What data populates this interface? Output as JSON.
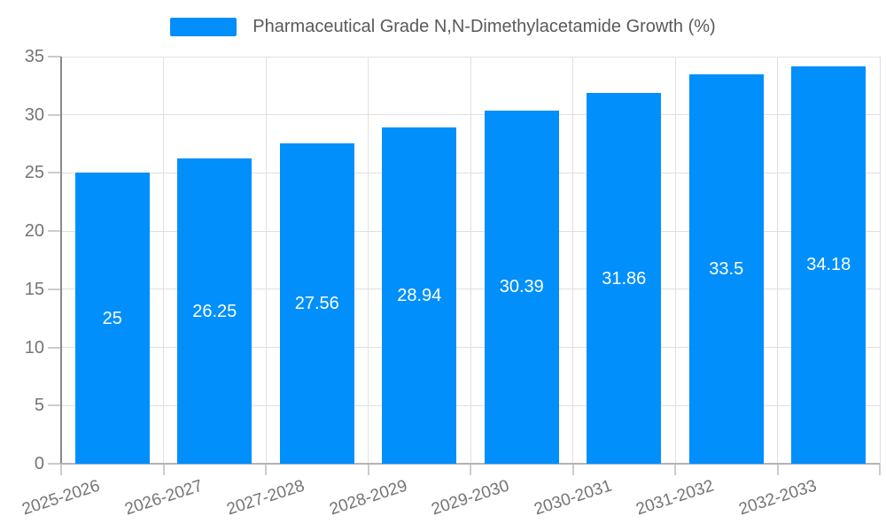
{
  "chart": {
    "legend_label": "Pharmaceutical Grade N,N-Dimethylacetamide Growth (%)"
  },
  "chart_data": {
    "type": "bar",
    "title": "Pharmaceutical Grade N,N-Dimethylacetamide Growth (%)",
    "categories": [
      "2025-2026",
      "2026-2027",
      "2027-2028",
      "2028-2029",
      "2029-2030",
      "2030-2031",
      "2031-2032",
      "2032-2033"
    ],
    "values": [
      25,
      26.25,
      27.56,
      28.94,
      30.39,
      31.86,
      33.5,
      34.18
    ],
    "xlabel": "",
    "ylabel": "",
    "ylim": [
      0,
      35
    ],
    "yticks": [
      0,
      5,
      10,
      15,
      20,
      25,
      30,
      35
    ],
    "grid": true,
    "legend_position": "top",
    "x_label_rotation_deg": -18,
    "colors": {
      "bar": "#008FFB",
      "value_label": "#FFFFFF",
      "axis_label": "#757575",
      "legend_text": "#595959",
      "gridline": "#E0E0E0",
      "y_axis_line": "#8A8A8A",
      "x_axis_line": "#B3B3B3",
      "tick": "#CCCCCC",
      "background": "#FFFFFF"
    }
  }
}
